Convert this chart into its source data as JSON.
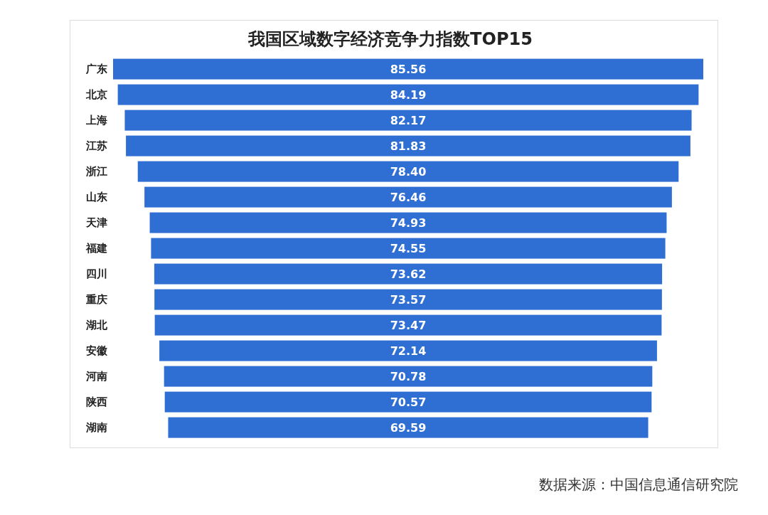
{
  "chart_data": {
    "type": "other",
    "title": "我国区域数字经济竞争力指数TOP15",
    "categories": [
      "广东",
      "北京",
      "上海",
      "江苏",
      "浙江",
      "山东",
      "天津",
      "福建",
      "四川",
      "重庆",
      "湖北",
      "安徽",
      "河南",
      "陕西",
      "湖南"
    ],
    "values": [
      85.56,
      84.19,
      82.17,
      81.83,
      78.4,
      76.46,
      74.93,
      74.55,
      73.62,
      73.57,
      73.47,
      72.14,
      70.78,
      70.57,
      69.59
    ],
    "value_labels": [
      "85.56",
      "84.19",
      "82.17",
      "81.83",
      "78.40",
      "76.46",
      "74.93",
      "74.55",
      "73.62",
      "73.57",
      "73.47",
      "72.14",
      "70.78",
      "70.57",
      "69.59"
    ],
    "color": "#2f6fd3",
    "annotations": [
      "数据来源：中国信息通信研究院"
    ]
  }
}
